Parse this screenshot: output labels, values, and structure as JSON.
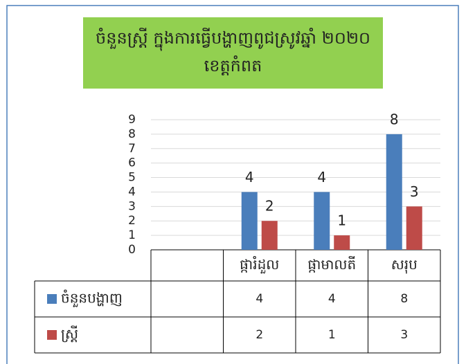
{
  "chart_data": {
    "type": "bar",
    "title": "ចំនួនស្ត្រី ក្នុងការធ្វើបង្ហាញពូជស្រូវឆ្នាំ ២០២០ ខេត្តកំពត",
    "categories": [
      null,
      "ផ្ការំដួល",
      "ផ្កាមាលតី",
      "សរុប"
    ],
    "series": [
      {
        "name": "ចំនួនបង្ហាញ",
        "color": "#4a7ebb",
        "values": [
          null,
          4,
          4,
          8
        ]
      },
      {
        "name": "ស្ត្រី",
        "color": "#be4b48",
        "values": [
          null,
          2,
          1,
          3
        ]
      }
    ],
    "ylim": [
      0,
      9
    ],
    "yticks": [
      0,
      1,
      2,
      3,
      4,
      5,
      6,
      7,
      8,
      9
    ],
    "grid": true,
    "data_table": true
  }
}
